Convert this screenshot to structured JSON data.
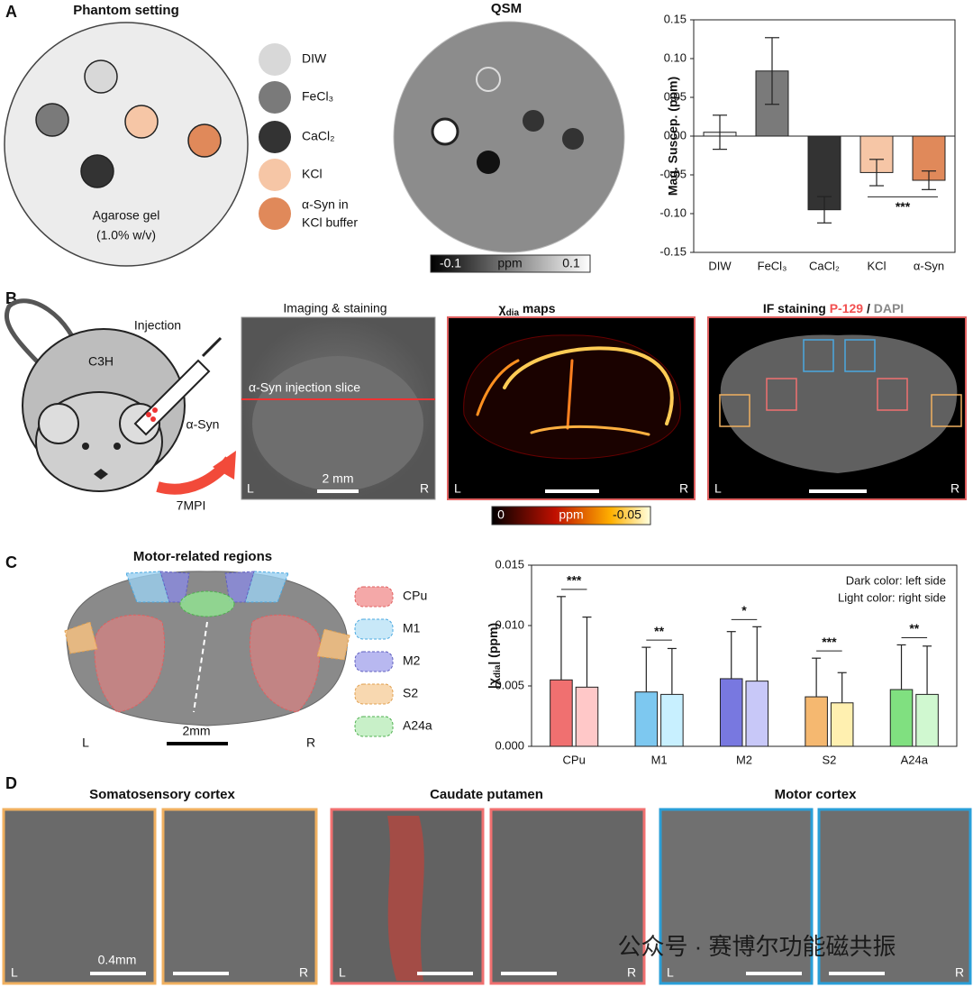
{
  "panel_letters": [
    "A",
    "B",
    "C",
    "D"
  ],
  "labels": {
    "L": "L",
    "R": "R"
  },
  "panel_a": {
    "phantom_title": "Phantom setting",
    "gel_line1": "Agarose gel",
    "gel_line2": "(1.0% w/v)",
    "legend": [
      "DIW",
      "FeCl₃",
      "CaCl₂",
      "KCl",
      "α-Syn in",
      "KCl buffer"
    ],
    "qsm_title": "QSM",
    "colorbar": {
      "min": "-0.1",
      "unit": "ppm",
      "max": "0.1"
    }
  },
  "panel_b": {
    "injection": "Injection",
    "strain": "C3H",
    "agent": "α-Syn",
    "time": "7MPI",
    "img1_title": "Imaging & staining",
    "slice_label": "α-Syn injection slice",
    "scale": "2 mm",
    "img2_title": {
      "symbol": "χ",
      "sub": "dia",
      "rest": " maps"
    },
    "colorbar": {
      "min": "0",
      "unit": "ppm",
      "max": "-0.05"
    },
    "img3_title": {
      "a": "IF staining ",
      "b": "P-129",
      "c": " / ",
      "d": "DAPI"
    }
  },
  "panel_c": {
    "title": "Motor-related regions",
    "legend": [
      "CPu",
      "M1",
      "M2",
      "S2",
      "A24a"
    ],
    "scale": "2mm"
  },
  "panel_d": {
    "titles": [
      "Somatosensory cortex",
      "Caudate putamen",
      "Motor cortex"
    ],
    "scale": "0.4mm"
  },
  "watermark": "公众号 · 赛博尔功能磁共振",
  "chart_data": [
    {
      "type": "bar",
      "ylabel": "Mag. Suscep. (ppm)",
      "categories": [
        "DIW",
        "FeCl₃",
        "CaCl₂",
        "KCl",
        "α-Syn"
      ],
      "values": [
        0.005,
        0.084,
        -0.095,
        -0.047,
        -0.057
      ],
      "errors": [
        0.022,
        0.043,
        0.017,
        0.017,
        0.012
      ],
      "colors": [
        "#f2f2f2",
        "#7a7a7a",
        "#333333",
        "#f6c6a6",
        "#e0895a"
      ],
      "ylim": [
        -0.15,
        0.15
      ],
      "yticks": [
        {
          "value": -0.15,
          "label": "-0.15"
        },
        {
          "value": -0.1,
          "label": "-0.10"
        },
        {
          "value": -0.05,
          "label": "-0.05"
        },
        {
          "value": 0,
          "label": "0.00"
        },
        {
          "value": 0.05,
          "label": "0.05"
        },
        {
          "value": 0.1,
          "label": "0.10"
        },
        {
          "value": 0.15,
          "label": "0.15"
        }
      ],
      "significance": [
        {
          "label": "***",
          "between": [
            3,
            4
          ]
        }
      ]
    },
    {
      "type": "grouped_bar",
      "ylabel": {
        "pre": "|χ",
        "sub": "dia",
        "post": "| (ppm)"
      },
      "categories": [
        "CPu",
        "M1",
        "M2",
        "S2",
        "A24a"
      ],
      "series": [
        {
          "values": [
            0.0055,
            0.0045,
            0.0056,
            0.0041,
            0.0047
          ],
          "errors": [
            0.0069,
            0.0037,
            0.0039,
            0.0032,
            0.0037
          ],
          "colors": [
            "#f07070",
            "#7dc8f0",
            "#7878e0",
            "#f5b870",
            "#80e080"
          ]
        },
        {
          "values": [
            0.0049,
            0.0043,
            0.0054,
            0.0036,
            0.0043
          ],
          "errors": [
            0.0058,
            0.0038,
            0.0045,
            0.0025,
            0.004
          ],
          "colors": [
            "#ffc8c8",
            "#c8f0ff",
            "#c8c8f8",
            "#fff0b0",
            "#d0f8d0"
          ]
        }
      ],
      "ylim": [
        0,
        0.015
      ],
      "yticks": [
        {
          "value": 0,
          "label": "0.000"
        },
        {
          "value": 0.005,
          "label": "0.005"
        },
        {
          "value": 0.01,
          "label": "0.010"
        },
        {
          "value": 0.015,
          "label": "0.015"
        }
      ],
      "significance": [
        "***",
        "**",
        "*",
        "***",
        "**"
      ],
      "annotations": [
        "Dark color: left side",
        "Light color: right side"
      ]
    }
  ]
}
